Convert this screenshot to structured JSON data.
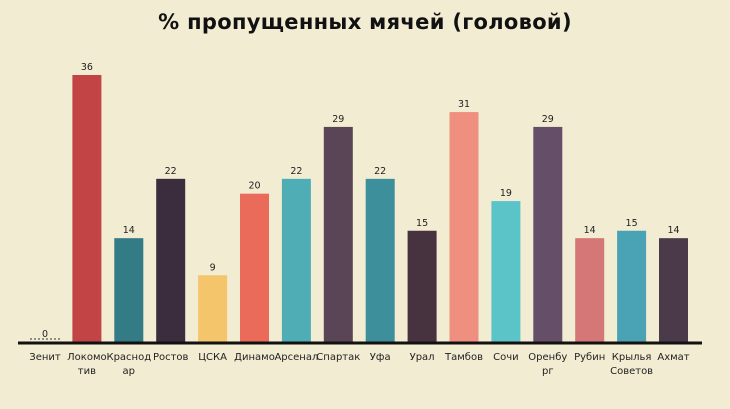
{
  "chart_data": {
    "type": "bar",
    "title": "% пропущенных мячей (головой)",
    "xlabel": "",
    "ylabel": "",
    "ylim": [
      0,
      36
    ],
    "grid": false,
    "categories": [
      "Зенит",
      "Локомотив",
      "Краснодар",
      "Ростов",
      "ЦСКА",
      "Динамо",
      "Арсенал",
      "Спартак",
      "Уфа",
      "Урал",
      "Тамбов",
      "Сочи",
      "Оренбург",
      "Рубин",
      "Крылья Советов",
      "Ахмат"
    ],
    "category_label_lines": [
      [
        "Зенит"
      ],
      [
        "Локомо",
        "тив"
      ],
      [
        "Краснод",
        "ар"
      ],
      [
        "Ростов"
      ],
      [
        "ЦСКА"
      ],
      [
        "Динамо"
      ],
      [
        "Арсенал"
      ],
      [
        "Спартак"
      ],
      [
        "Уфа"
      ],
      [
        "Урал"
      ],
      [
        "Тамбов"
      ],
      [
        "Сочи"
      ],
      [
        "Оренбу",
        "рг"
      ],
      [
        "Рубин"
      ],
      [
        "Крылья",
        "Советов"
      ],
      [
        "Ахмат"
      ]
    ],
    "values": [
      0,
      36,
      14,
      22,
      9,
      20,
      22,
      29,
      22,
      15,
      31,
      19,
      29,
      14,
      15,
      14
    ],
    "colors": [
      "#c24444",
      "#c24444",
      "#347c85",
      "#3b2d3e",
      "#f4c56a",
      "#eb6b5a",
      "#4eadb5",
      "#5a4557",
      "#3d8f9c",
      "#46333f",
      "#ef8f80",
      "#5bc4c8",
      "#654e68",
      "#d47776",
      "#4aa3b5",
      "#4a3a4a"
    ]
  }
}
